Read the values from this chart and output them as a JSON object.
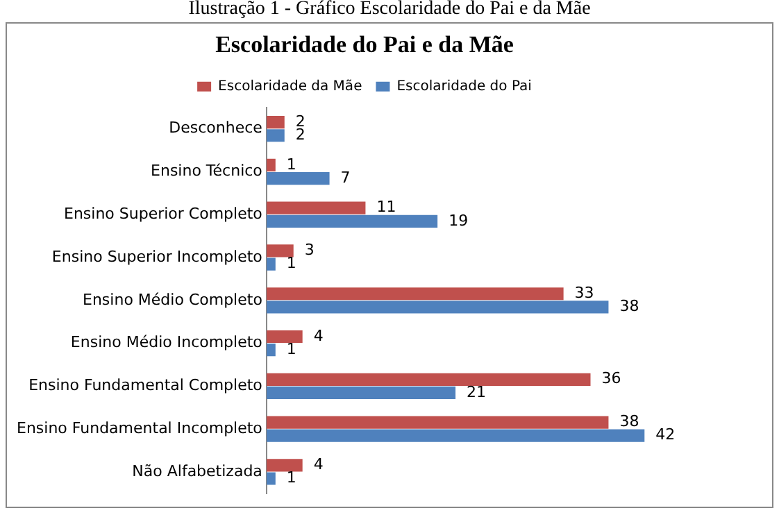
{
  "chart_data": {
    "type": "bar",
    "orientation": "horizontal",
    "title": "Escolaridade do Pai e da Mãe",
    "annotations": [
      "Ilustração 1 - Gráfico Escolaridade do Pai e da Mãe"
    ],
    "categories": [
      "Desconhece",
      "Ensino Técnico",
      "Ensino Superior Completo",
      "Ensino Superior Incompleto",
      "Ensino Médio Completo",
      "Ensino Médio Incompleto",
      "Ensino Fundamental Completo",
      "Ensino Fundamental Incompleto",
      "Não Alfabetizada"
    ],
    "series": [
      {
        "name": "Escolaridade da Mãe",
        "color": "#c0504d",
        "values": [
          2,
          1,
          11,
          3,
          33,
          4,
          36,
          38,
          4
        ]
      },
      {
        "name": "Escolaridade do Pai",
        "color": "#4f81bd",
        "values": [
          2,
          7,
          19,
          1,
          38,
          1,
          21,
          42,
          1
        ]
      }
    ],
    "data_labels": true,
    "legend": "top",
    "grid": false
  }
}
